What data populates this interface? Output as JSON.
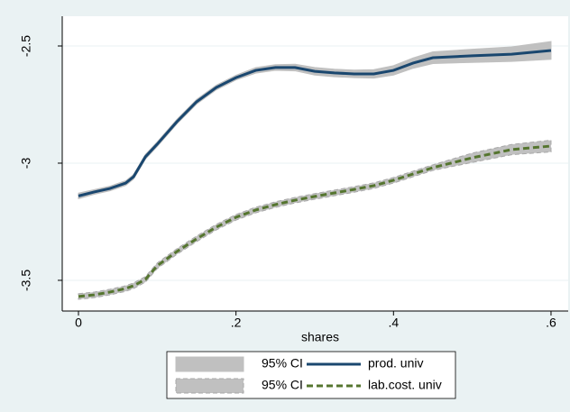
{
  "chart_data": {
    "type": "line",
    "x_label": "shares",
    "x": [
      0,
      0.02,
      0.04,
      0.06,
      0.07,
      0.085,
      0.1,
      0.125,
      0.15,
      0.175,
      0.2,
      0.225,
      0.25,
      0.275,
      0.3,
      0.325,
      0.35,
      0.375,
      0.4,
      0.425,
      0.45,
      0.5,
      0.55,
      0.6
    ],
    "series": [
      {
        "name": "95% CI",
        "kind": "band",
        "color": "#c0c0c0",
        "lower": [
          -3.152,
          -3.133,
          -3.118,
          -3.095,
          -3.068,
          -2.983,
          -2.929,
          -2.833,
          -2.748,
          -2.687,
          -2.645,
          -2.616,
          -2.604,
          -2.606,
          -2.624,
          -2.631,
          -2.635,
          -2.637,
          -2.624,
          -2.595,
          -2.575,
          -2.57,
          -2.566,
          -2.557
        ],
        "upper": [
          -3.128,
          -3.113,
          -3.098,
          -3.075,
          -3.048,
          -2.963,
          -2.909,
          -2.813,
          -2.728,
          -2.667,
          -2.625,
          -2.592,
          -2.58,
          -2.578,
          -2.592,
          -2.599,
          -2.603,
          -2.601,
          -2.584,
          -2.551,
          -2.525,
          -2.514,
          -2.504,
          -2.481
        ]
      },
      {
        "name": "prod. univ",
        "color": "#1a476f",
        "values": [
          -3.14,
          -3.123,
          -3.108,
          -3.085,
          -3.058,
          -2.973,
          -2.919,
          -2.823,
          -2.738,
          -2.677,
          -2.635,
          -2.604,
          -2.592,
          -2.592,
          -2.608,
          -2.615,
          -2.619,
          -2.619,
          -2.604,
          -2.573,
          -2.55,
          -2.542,
          -2.535,
          -2.519
        ]
      },
      {
        "name": "95% CI",
        "kind": "band",
        "color": "#c0c0c0",
        "dashed": true,
        "lower": [
          -3.581,
          -3.574,
          -3.562,
          -3.547,
          -3.535,
          -3.508,
          -3.45,
          -3.389,
          -3.335,
          -3.285,
          -3.243,
          -3.212,
          -3.189,
          -3.17,
          -3.154,
          -3.139,
          -3.124,
          -3.108,
          -3.085,
          -3.058,
          -3.031,
          -2.997,
          -2.964,
          -2.952
        ],
        "upper": [
          -3.557,
          -3.55,
          -3.538,
          -3.523,
          -3.511,
          -3.484,
          -3.426,
          -3.365,
          -3.311,
          -3.261,
          -3.219,
          -3.188,
          -3.165,
          -3.146,
          -3.13,
          -3.115,
          -3.1,
          -3.084,
          -3.061,
          -3.034,
          -3.007,
          -2.957,
          -2.92,
          -2.902
        ]
      },
      {
        "name": "lab.cost. univ",
        "color": "#55752f",
        "dashed": true,
        "values": [
          -3.569,
          -3.562,
          -3.55,
          -3.535,
          -3.523,
          -3.496,
          -3.438,
          -3.377,
          -3.323,
          -3.273,
          -3.231,
          -3.2,
          -3.177,
          -3.158,
          -3.142,
          -3.127,
          -3.112,
          -3.096,
          -3.073,
          -3.046,
          -3.019,
          -2.977,
          -2.942,
          -2.927
        ]
      }
    ],
    "xlim": [
      -0.0206,
      0.6218
    ],
    "ylim": [
      -3.631,
      -2.373
    ],
    "xticks": [
      0,
      {
        "value": 0.2,
        "label": ".2"
      },
      {
        "value": 0.4,
        "label": ".4"
      },
      {
        "value": 0.6,
        "label": ".6"
      }
    ],
    "yticks": [
      -3.5,
      -3,
      -2.5
    ],
    "grid": true
  }
}
